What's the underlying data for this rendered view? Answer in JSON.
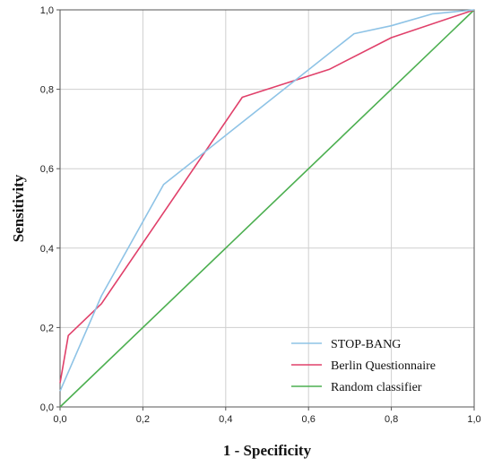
{
  "chart_data": {
    "type": "line",
    "xlabel": "1 - Specificity",
    "ylabel": "Sensitivity",
    "xlim": [
      0,
      1
    ],
    "ylim": [
      0,
      1
    ],
    "x_ticks": [
      "0,0",
      "0,2",
      "0,4",
      "0,6",
      "0,8",
      "1,0"
    ],
    "y_ticks": [
      "0,0",
      "0,2",
      "0,4",
      "0,6",
      "0,8",
      "1,0"
    ],
    "grid": true,
    "legend_position": "bottom-right",
    "series": [
      {
        "name": "STOP-BANG",
        "color": "#8ec3e6",
        "points": [
          [
            0,
            0.04
          ],
          [
            0.1,
            0.28
          ],
          [
            0.25,
            0.56
          ],
          [
            0.71,
            0.94
          ],
          [
            0.8,
            0.96
          ],
          [
            0.9,
            0.99
          ],
          [
            1.0,
            1.0
          ]
        ]
      },
      {
        "name": "Berlin Questionnaire",
        "color": "#e0406a",
        "points": [
          [
            0,
            0.06
          ],
          [
            0.02,
            0.18
          ],
          [
            0.1,
            0.26
          ],
          [
            0.44,
            0.78
          ],
          [
            0.65,
            0.85
          ],
          [
            0.8,
            0.93
          ],
          [
            1.0,
            1.0
          ]
        ]
      },
      {
        "name": "Random classifier",
        "color": "#4caf50",
        "points": [
          [
            0,
            0
          ],
          [
            1.0,
            1.0
          ]
        ]
      }
    ]
  }
}
